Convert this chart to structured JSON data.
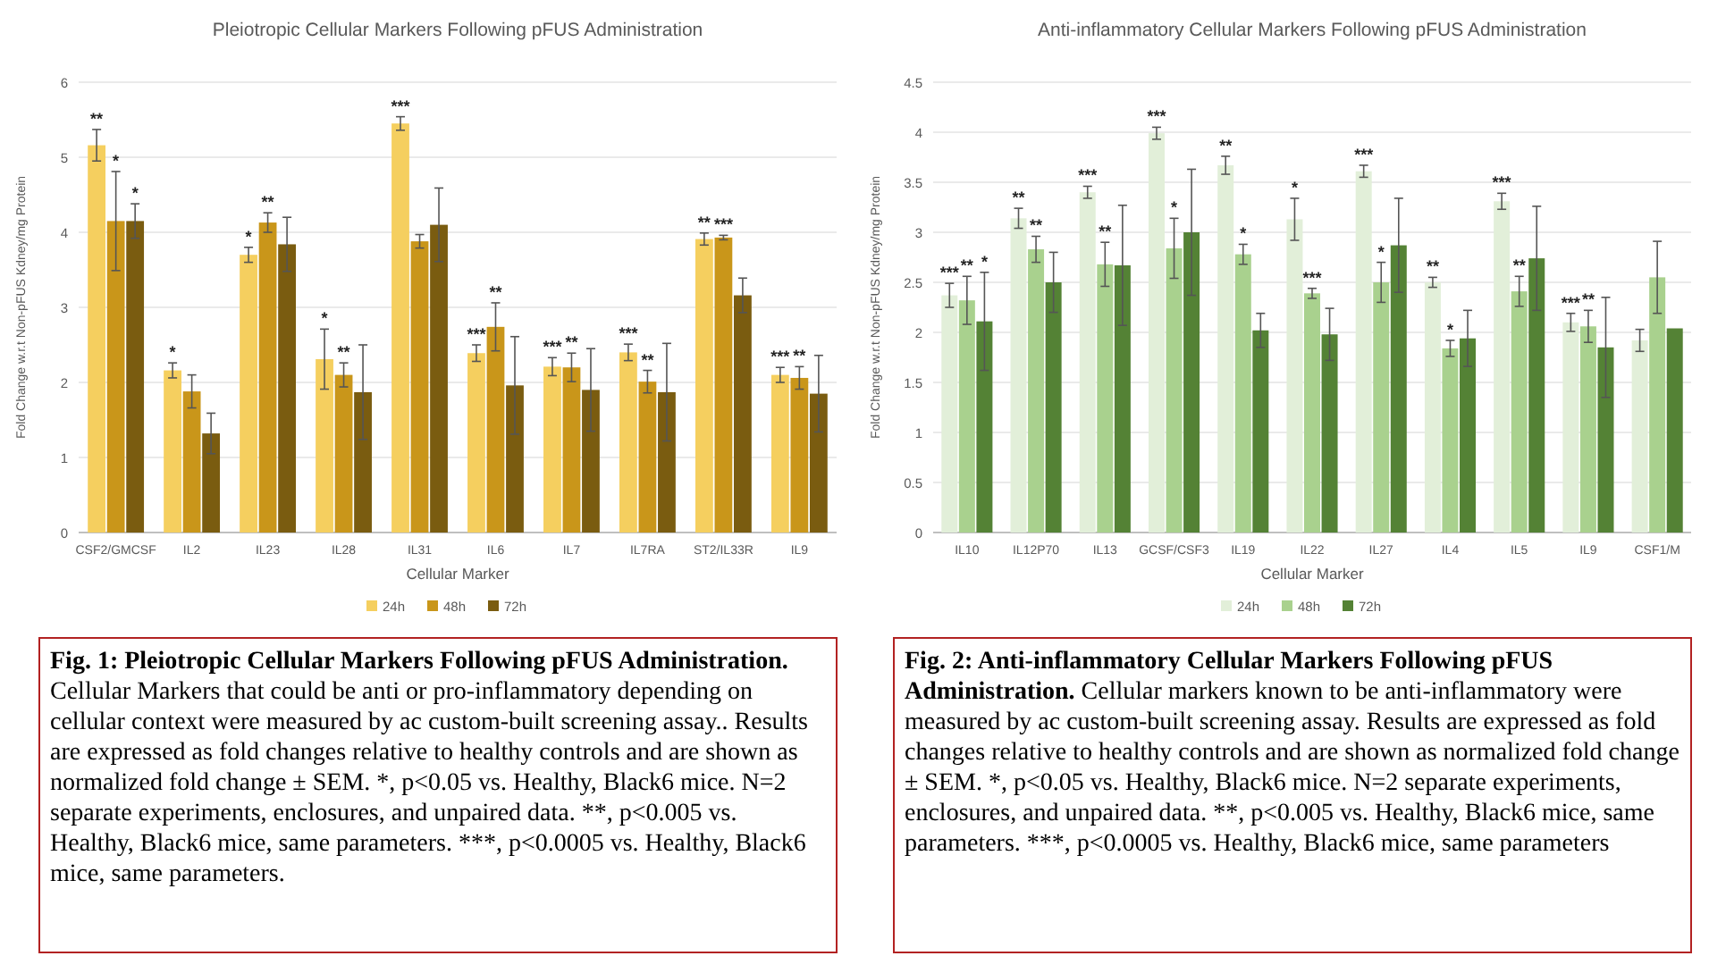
{
  "chart_data": [
    {
      "type": "bar",
      "title": "Pleiotropic Cellular Markers Following pFUS Administration",
      "xlabel": "Cellular Marker",
      "ylabel": "Fold Change w.r.t Non-pFUS Kdney/mg Protein",
      "categories": [
        "CSF2/GMCSF",
        "IL2",
        "IL23",
        "IL28",
        "IL31",
        "IL6",
        "IL7",
        "IL7RA",
        "ST2/IL33R",
        "IL9"
      ],
      "ylim": [
        0,
        6
      ],
      "yticks": [
        0,
        1,
        2,
        3,
        4,
        5,
        6
      ],
      "grid": "y",
      "legend": "bottom",
      "series": [
        {
          "name": "24h",
          "color": "#f5cf5f",
          "values": [
            5.16,
            2.16,
            3.7,
            2.31,
            5.45,
            2.39,
            2.21,
            2.4,
            3.91,
            2.1
          ],
          "errors": [
            0.21,
            0.1,
            0.1,
            0.4,
            0.09,
            0.11,
            0.12,
            0.11,
            0.08,
            0.1
          ],
          "value_labels": [
            "**",
            "*",
            "*",
            "*",
            "***",
            "***",
            "***",
            "***",
            "**",
            "***"
          ]
        },
        {
          "name": "48h",
          "color": "#c9961a",
          "values": [
            4.15,
            1.88,
            4.13,
            2.1,
            3.88,
            2.74,
            2.2,
            2.01,
            3.93,
            2.06
          ],
          "errors": [
            0.66,
            0.22,
            0.13,
            0.16,
            0.09,
            0.32,
            0.19,
            0.15,
            0.03,
            0.15
          ],
          "value_labels": [
            "*",
            null,
            "**",
            "**",
            null,
            "**",
            "**",
            "**",
            "***",
            "**"
          ]
        },
        {
          "name": "72h",
          "color": "#7a5c10",
          "values": [
            4.15,
            1.32,
            3.84,
            1.87,
            4.1,
            1.96,
            1.9,
            1.87,
            3.16,
            1.85
          ],
          "errors": [
            0.23,
            0.27,
            0.36,
            0.63,
            0.49,
            0.65,
            0.55,
            0.65,
            0.23,
            0.51
          ],
          "value_labels": [
            "*",
            null,
            null,
            null,
            null,
            null,
            null,
            null,
            null,
            null
          ]
        }
      ],
      "annotations": [
        "Fig. 1: Pleiotropic Cellular Markers Following pFUS Administration.",
        "Cellular Markers that could be anti or pro-inflammatory depending on cellular context were measured by ac custom-built screening assay.. Results are expressed as fold changes relative to healthy controls and are shown as normalized fold change ± SEM. *, p<0.05 vs. Healthy, Black6 mice. N=2 separate experiments, enclosures, and unpaired data. **, p<0.005 vs. Healthy, Black6 mice, same parameters. ***, p<0.0005 vs. Healthy, Black6 mice, same parameters."
      ]
    },
    {
      "type": "bar",
      "title": "Anti-inflammatory Cellular Markers Following pFUS Administration",
      "xlabel": "Cellular Marker",
      "ylabel": "Fold Change w.r.t Non-pFUS Kdney/mg Protein",
      "categories": [
        "IL10",
        "IL12P70",
        "IL13",
        "GCSF/CSF3",
        "IL19",
        "IL22",
        "IL27",
        "IL4",
        "IL5",
        "IL9",
        "CSF1/M"
      ],
      "ylim": [
        0,
        4.5
      ],
      "yticks": [
        0,
        0.5,
        1,
        1.5,
        2,
        2.5,
        3,
        3.5,
        4,
        4.5
      ],
      "grid": "y",
      "legend": "bottom",
      "series": [
        {
          "name": "24h",
          "color": "#e2efd9",
          "values": [
            2.37,
            3.14,
            3.4,
            3.99,
            3.67,
            3.13,
            3.61,
            2.5,
            3.31,
            2.1,
            1.92
          ],
          "errors": [
            0.12,
            0.1,
            0.06,
            0.06,
            0.09,
            0.21,
            0.06,
            0.05,
            0.08,
            0.09,
            0.11
          ],
          "value_labels": [
            "***",
            "**",
            "***",
            "***",
            "**",
            "*",
            "***",
            "**",
            "***",
            "***",
            null
          ]
        },
        {
          "name": "48h",
          "color": "#a9d18e",
          "values": [
            2.32,
            2.83,
            2.68,
            2.84,
            2.78,
            2.39,
            2.5,
            1.84,
            2.41,
            2.06,
            2.55
          ],
          "errors": [
            0.24,
            0.13,
            0.22,
            0.3,
            0.1,
            0.05,
            0.2,
            0.08,
            0.15,
            0.16,
            0.36
          ],
          "value_labels": [
            "**",
            "**",
            "**",
            "*",
            "*",
            "***",
            "*",
            "*",
            "**",
            "**",
            null
          ]
        },
        {
          "name": "72h",
          "color": "#548235",
          "values": [
            2.11,
            2.5,
            2.67,
            3.0,
            2.02,
            1.98,
            2.87,
            1.94,
            2.74,
            1.85,
            2.04
          ],
          "errors": [
            0.49,
            0.3,
            0.6,
            0.63,
            0.17,
            0.26,
            0.47,
            0.28,
            0.52,
            0.5,
            null
          ],
          "value_labels": [
            "*",
            null,
            null,
            null,
            null,
            null,
            null,
            null,
            null,
            null,
            null
          ]
        }
      ],
      "annotations": [
        "Fig. 2: Anti-inflammatory Cellular Markers Following pFUS Administration.",
        "Cellular markers known to be anti-inflammatory were measured by ac custom-built screening assay. Results are expressed as fold changes relative to healthy controls and are shown as normalized fold change ± SEM. *, p<0.05 vs. Healthy, Black6 mice. N=2 separate experiments, enclosures, and unpaired data. **, p<0.005 vs. Healthy, Black6 mice, same parameters. ***, p<0.0005 vs. Healthy, Black6 mice, same parameters"
      ]
    }
  ]
}
